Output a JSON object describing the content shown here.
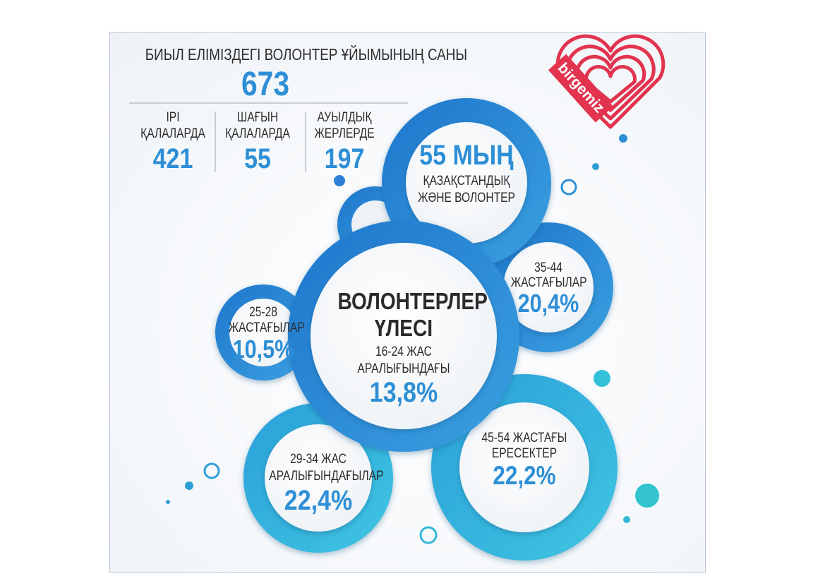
{
  "header": {
    "title": "БИЫЛ ЕЛІМІЗДЕГІ ВОЛОНТЕР ҰЙЫМЫНЫҢ САНЫ",
    "total": "673"
  },
  "breakdown": [
    {
      "line1": "ІРІ",
      "line2": "ҚАЛАЛАРДА",
      "value": "421"
    },
    {
      "line1": "ШАҒЫН",
      "line2": "ҚАЛАЛАРДА",
      "value": "55"
    },
    {
      "line1": "АУЫЛДЫҚ",
      "line2": "ЖЕРЛЕРДЕ",
      "value": "197"
    }
  ],
  "logo": {
    "text": "birgemiz",
    "color": "#e2334f"
  },
  "bubbles": {
    "total": {
      "value": "55 МЫҢ",
      "line1": "ҚАЗАҚСТАНДЫҚ",
      "line2": "ЖӘНЕ ВОЛОНТЕР"
    },
    "center": {
      "title1": "ВОЛОНТЕРЛЕР",
      "title2": "ҮЛЕСІ",
      "line1": "16-24 ЖАС",
      "line2": "АРАЛЫҒЫНДАҒЫ",
      "value": "13,8%"
    },
    "age_35_44": {
      "line1": "35-44",
      "line2": "ЖАСТАҒЫЛАР",
      "value": "20,4%"
    },
    "age_25_28": {
      "line1": "25-28",
      "line2": "ЖАСТАҒЫЛАР",
      "value": "10,5%"
    },
    "age_29_34": {
      "line1": "29-34 ЖАС",
      "line2": "АРАЛЫҒЫНДАҒЫЛАР",
      "value": "22,4%"
    },
    "age_45_54": {
      "line1": "45-54 ЖАСТАҒЫ",
      "line2": "ЕРЕСЕКТЕР",
      "value": "22,2%"
    }
  },
  "colors": {
    "accent": "#2e8fd6",
    "ring_dark": "#2a7fd0",
    "ring_light": "#33b6dc",
    "text": "#2d2d2d"
  }
}
